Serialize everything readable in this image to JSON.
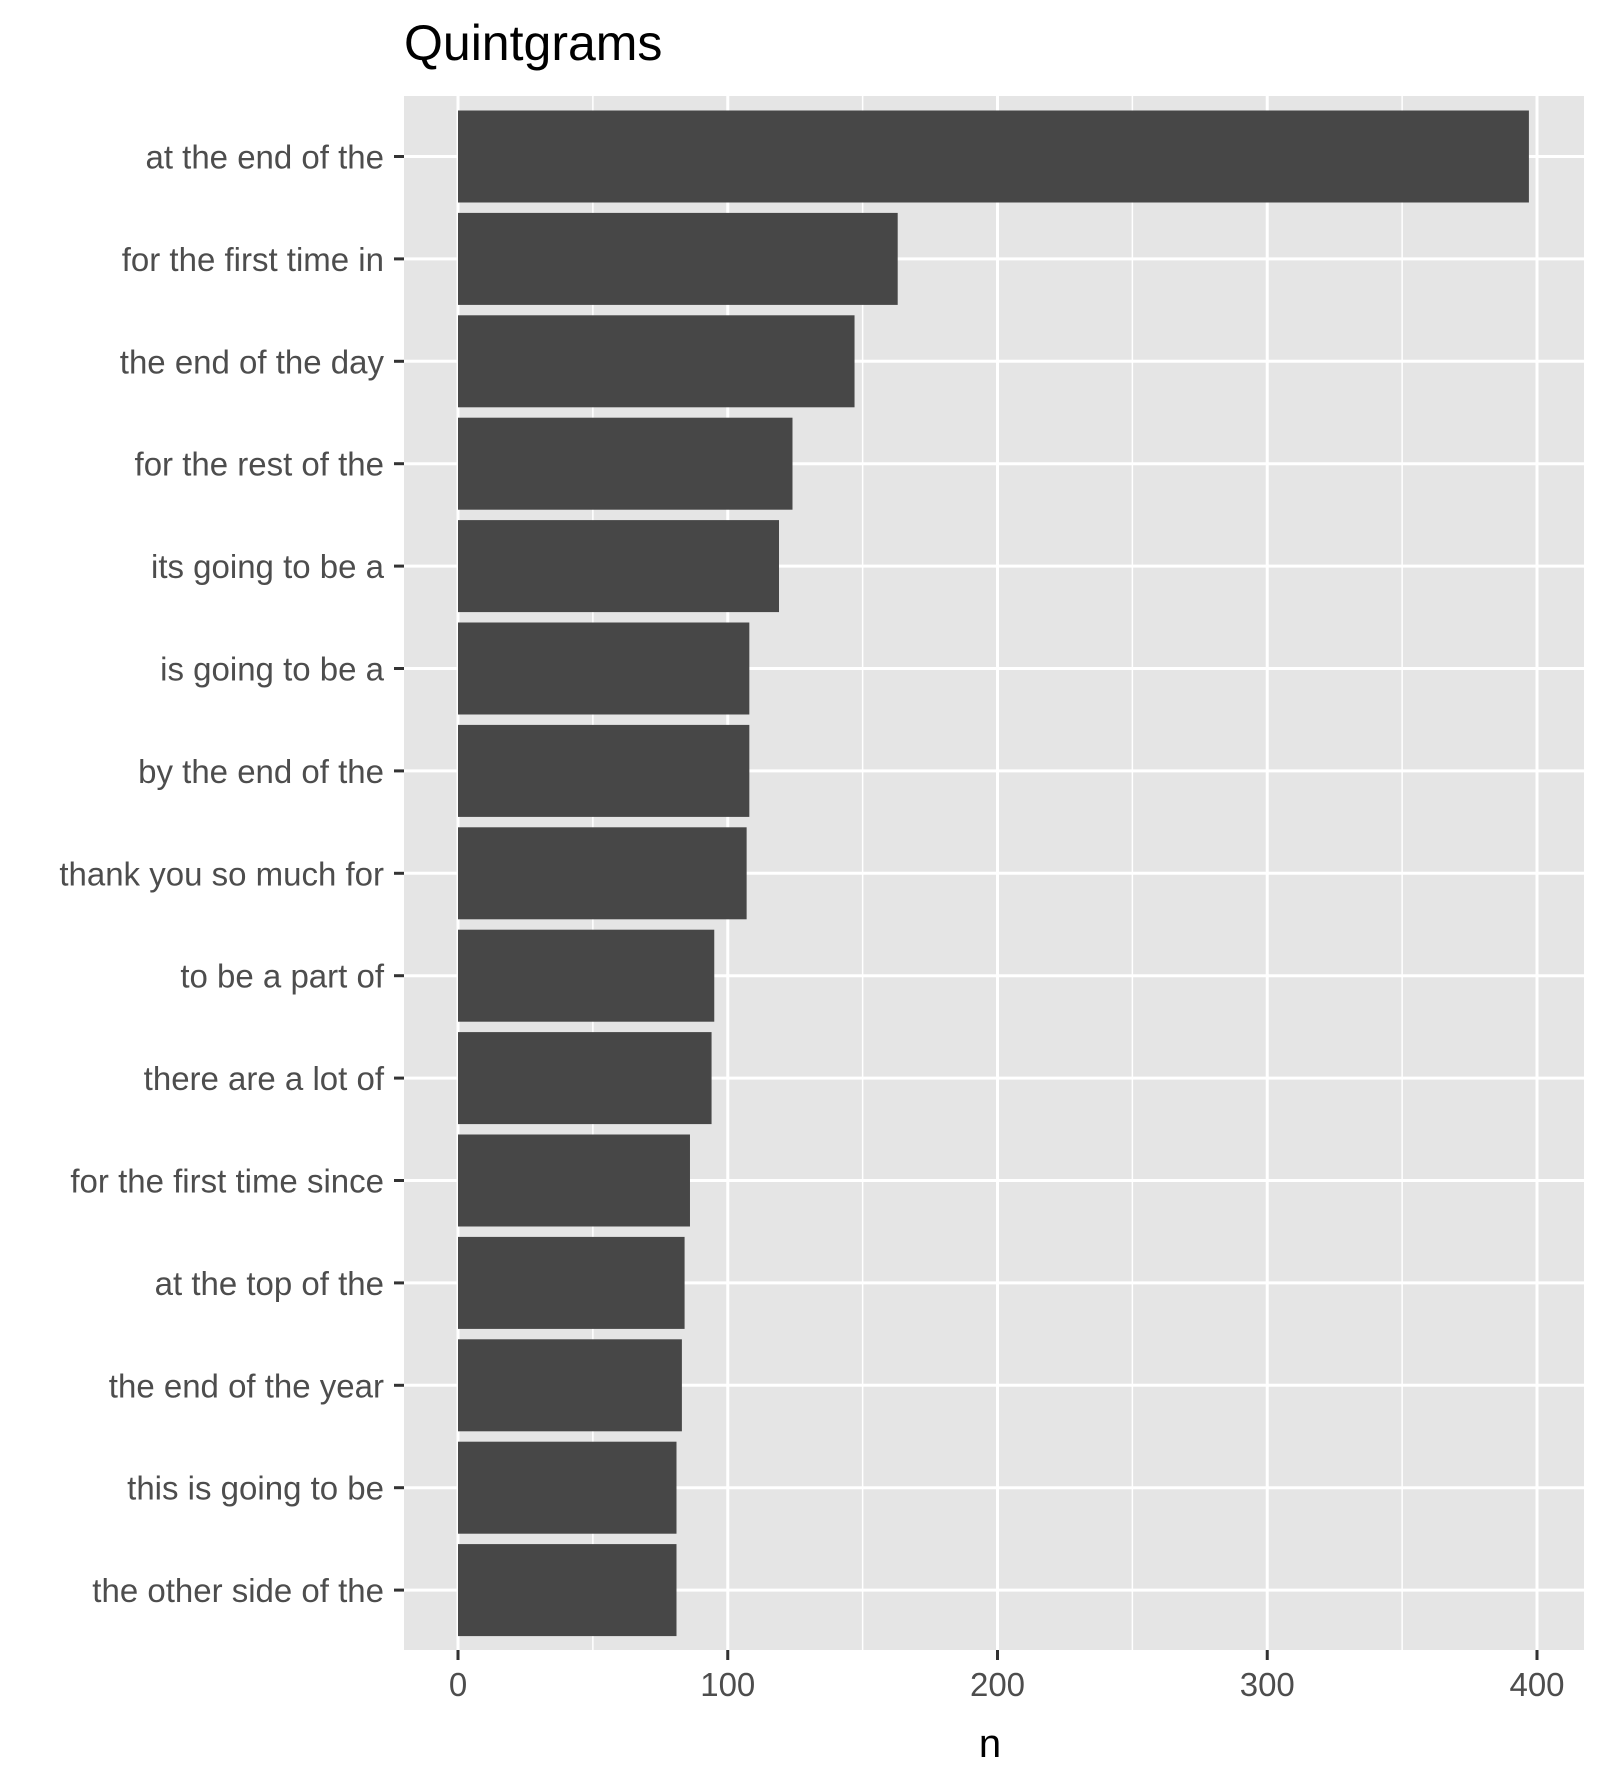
{
  "chart_data": {
    "type": "bar",
    "orientation": "horizontal",
    "title": "Quintgrams",
    "xlabel": "n",
    "ylabel": "",
    "xlim": [
      -20,
      420
    ],
    "x_ticks": [
      0,
      100,
      200,
      300,
      400
    ],
    "x_minor_ticks": [
      50,
      150,
      250,
      350
    ],
    "grid": true,
    "legend": "none",
    "bar_color": "#474747",
    "panel_color": "#e5e5e5",
    "categories": [
      "at the end of the",
      "for the first time in",
      "the end of the day",
      "for the rest of the",
      "its going to be a",
      "is going to be a",
      "by the end of the",
      "thank you so much for",
      "to be a part of",
      "there are a lot of",
      "for the first time since",
      "at the top of the",
      "the end of the year",
      "this is going to be",
      "the other side of the"
    ],
    "values": [
      397,
      163,
      147,
      124,
      119,
      108,
      108,
      107,
      95,
      94,
      86,
      84,
      83,
      81,
      81
    ]
  }
}
